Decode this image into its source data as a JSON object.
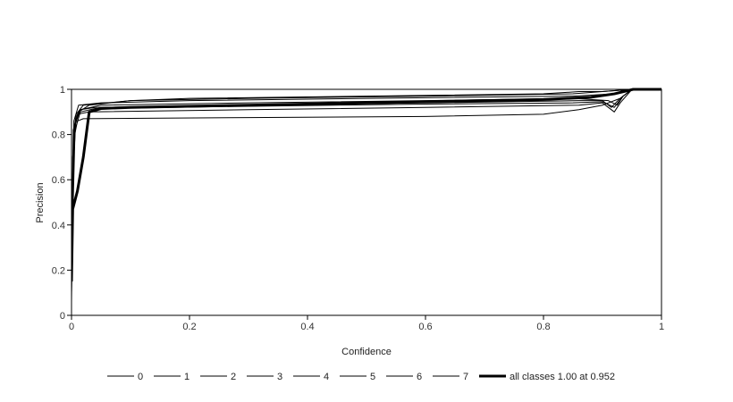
{
  "chart_data": {
    "type": "line",
    "title": "",
    "xlabel": "Confidence",
    "ylabel": "Precision",
    "xlim": [
      0,
      1
    ],
    "ylim": [
      0,
      1
    ],
    "x_ticks": [
      0,
      0.2,
      0.4,
      0.6,
      0.8,
      1
    ],
    "x_tick_labels": [
      "0",
      "0.2",
      "0.4",
      "0.6",
      "0.8",
      "1"
    ],
    "y_ticks": [
      0,
      0.2,
      0.4,
      0.6,
      0.8,
      1
    ],
    "y_tick_labels": [
      "0",
      "0.2",
      "0.4",
      "0.6",
      "0.8",
      "1"
    ],
    "grid": false,
    "legend_position": "bottom",
    "colors": {
      "series": "#000000",
      "frame": "#000000"
    },
    "series": [
      {
        "name": "0",
        "width": 1,
        "points": [
          [
            0,
            0.1
          ],
          [
            0.002,
            0.7
          ],
          [
            0.006,
            0.85
          ],
          [
            0.012,
            0.9
          ],
          [
            0.03,
            0.93
          ],
          [
            0.1,
            0.95
          ],
          [
            0.2,
            0.96
          ],
          [
            0.5,
            0.97
          ],
          [
            0.8,
            0.98
          ],
          [
            0.86,
            0.99
          ],
          [
            0.9,
            0.99
          ],
          [
            0.95,
            1.0
          ],
          [
            1,
            1.0
          ]
        ]
      },
      {
        "name": "1",
        "width": 1,
        "points": [
          [
            0,
            0.2
          ],
          [
            0.003,
            0.8
          ],
          [
            0.008,
            0.89
          ],
          [
            0.02,
            0.93
          ],
          [
            0.1,
            0.95
          ],
          [
            0.3,
            0.96
          ],
          [
            0.6,
            0.97
          ],
          [
            0.85,
            0.98
          ],
          [
            0.9,
            0.99
          ],
          [
            0.95,
            1.0
          ],
          [
            1,
            1.0
          ]
        ]
      },
      {
        "name": "2",
        "width": 1,
        "points": [
          [
            0,
            0.3
          ],
          [
            0.004,
            0.78
          ],
          [
            0.01,
            0.86
          ],
          [
            0.02,
            0.87
          ],
          [
            0.3,
            0.875
          ],
          [
            0.6,
            0.88
          ],
          [
            0.8,
            0.89
          ],
          [
            0.86,
            0.91
          ],
          [
            0.9,
            0.93
          ],
          [
            0.93,
            0.96
          ],
          [
            0.95,
            1.0
          ],
          [
            1,
            1.0
          ]
        ]
      },
      {
        "name": "3",
        "width": 1,
        "points": [
          [
            0,
            0.1
          ],
          [
            0.003,
            0.82
          ],
          [
            0.01,
            0.89
          ],
          [
            0.03,
            0.9
          ],
          [
            0.3,
            0.91
          ],
          [
            0.6,
            0.92
          ],
          [
            0.86,
            0.93
          ],
          [
            0.9,
            0.94
          ],
          [
            0.92,
            0.9
          ],
          [
            0.93,
            0.94
          ],
          [
            0.95,
            1.0
          ],
          [
            1,
            1.0
          ]
        ]
      },
      {
        "name": "4",
        "width": 1,
        "points": [
          [
            0,
            0.4
          ],
          [
            0.005,
            0.84
          ],
          [
            0.015,
            0.91
          ],
          [
            0.04,
            0.92
          ],
          [
            0.3,
            0.93
          ],
          [
            0.6,
            0.94
          ],
          [
            0.86,
            0.95
          ],
          [
            0.9,
            0.95
          ],
          [
            0.915,
            0.92
          ],
          [
            0.93,
            0.96
          ],
          [
            0.95,
            1.0
          ],
          [
            1,
            1.0
          ]
        ]
      },
      {
        "name": "5",
        "width": 1,
        "points": [
          [
            0,
            0.15
          ],
          [
            0.004,
            0.86
          ],
          [
            0.012,
            0.93
          ],
          [
            0.05,
            0.94
          ],
          [
            0.2,
            0.95
          ],
          [
            0.5,
            0.96
          ],
          [
            0.85,
            0.97
          ],
          [
            0.92,
            0.98
          ],
          [
            0.94,
            1.0
          ],
          [
            1,
            1.0
          ]
        ]
      },
      {
        "name": "6",
        "width": 1,
        "points": [
          [
            0,
            0.06
          ],
          [
            0.002,
            0.6
          ],
          [
            0.007,
            0.85
          ],
          [
            0.015,
            0.91
          ],
          [
            0.05,
            0.93
          ],
          [
            0.3,
            0.94
          ],
          [
            0.6,
            0.95
          ],
          [
            0.85,
            0.96
          ],
          [
            0.91,
            0.95
          ],
          [
            0.925,
            0.93
          ],
          [
            0.935,
            0.97
          ],
          [
            0.95,
            1.0
          ],
          [
            1,
            1.0
          ]
        ]
      },
      {
        "name": "7",
        "width": 1,
        "points": [
          [
            0,
            0.2
          ],
          [
            0.006,
            0.82
          ],
          [
            0.015,
            0.9
          ],
          [
            0.04,
            0.915
          ],
          [
            0.3,
            0.925
          ],
          [
            0.6,
            0.935
          ],
          [
            0.85,
            0.94
          ],
          [
            0.9,
            0.945
          ],
          [
            0.92,
            0.92
          ],
          [
            0.935,
            0.97
          ],
          [
            0.95,
            1.0
          ],
          [
            1,
            1.0
          ]
        ]
      },
      {
        "name": "all classes 1.00 at 0.952",
        "width": 3,
        "points": [
          [
            0,
            0.15
          ],
          [
            0.002,
            0.47
          ],
          [
            0.01,
            0.55
          ],
          [
            0.02,
            0.7
          ],
          [
            0.03,
            0.9
          ],
          [
            0.05,
            0.915
          ],
          [
            0.1,
            0.92
          ],
          [
            0.3,
            0.93
          ],
          [
            0.6,
            0.945
          ],
          [
            0.8,
            0.955
          ],
          [
            0.88,
            0.965
          ],
          [
            0.92,
            0.98
          ],
          [
            0.952,
            1.0
          ],
          [
            1,
            1.0
          ]
        ]
      }
    ]
  }
}
